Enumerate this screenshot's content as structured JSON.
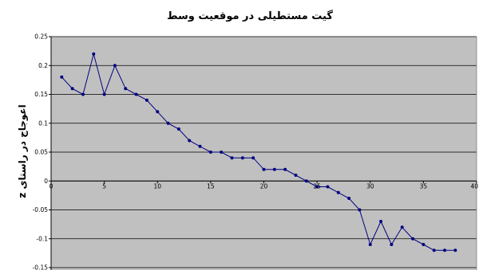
{
  "chart_data": {
    "type": "line",
    "title": "گیت مستطیلی در موقعیت وسط",
    "xlabel": "",
    "ylabel": "اعوجاج در راستای z",
    "xlim": [
      0,
      40
    ],
    "ylim": [
      -0.15,
      0.25
    ],
    "xticks": [
      0,
      5,
      10,
      15,
      20,
      25,
      30,
      35,
      40
    ],
    "yticks": [
      0.25,
      0.2,
      0.15,
      0.1,
      0.05,
      0,
      -0.05,
      -0.1,
      -0.15
    ],
    "ytick_labels": [
      "0.25",
      "0.2",
      "0.15",
      "0.1",
      "0.05",
      "0",
      "-0.05",
      "-0.1",
      "-0.15"
    ],
    "grid": true,
    "legend": "none",
    "plot_background": "#c0c0c0",
    "series_color": "#000080",
    "series": [
      {
        "x": [
          1,
          2,
          3,
          4,
          5,
          6,
          7,
          8,
          9,
          10,
          11,
          12,
          13,
          14,
          15,
          16,
          17,
          18,
          19,
          20,
          21,
          22,
          23,
          24,
          25,
          26,
          27,
          28,
          29,
          30,
          31,
          32,
          33,
          34,
          35,
          36,
          37,
          38
        ],
        "values": [
          0.18,
          0.16,
          0.15,
          0.22,
          0.15,
          0.2,
          0.16,
          0.15,
          0.14,
          0.12,
          0.1,
          0.09,
          0.07,
          0.06,
          0.05,
          0.05,
          0.04,
          0.04,
          0.04,
          0.02,
          0.02,
          0.02,
          0.01,
          0.0,
          -0.01,
          -0.01,
          -0.02,
          -0.03,
          -0.05,
          -0.11,
          -0.07,
          -0.11,
          -0.08,
          -0.1,
          -0.11,
          -0.12,
          -0.12,
          -0.12
        ]
      }
    ]
  }
}
